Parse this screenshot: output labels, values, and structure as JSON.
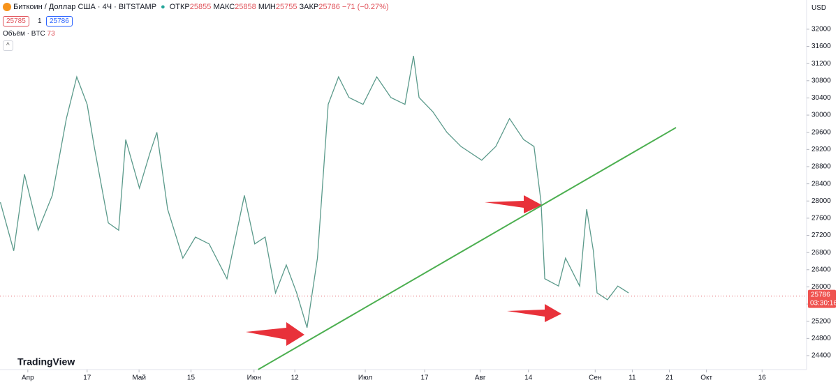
{
  "header": {
    "symbol": "Биткоин / Доллар США · 4Ч · BITSTAMP",
    "open_label": "ОТКР",
    "open": 25855,
    "high_label": "МАКС",
    "high": 25858,
    "low_label": "МИН",
    "low": 25755,
    "close_label": "ЗАКР",
    "close": 25786,
    "change": "−71 (−0.27%)",
    "bid": 25785,
    "spread": 1,
    "ask": 25786,
    "volume_label": "Объём · BTC",
    "volume": 73,
    "currency": "USD",
    "brand": "TradingView"
  },
  "chart_data": {
    "type": "line",
    "color": "#5b9a8b",
    "x": [
      -7.4,
      -3.8,
      -0.9,
      2.8,
      6.6,
      10.4,
      13.2,
      16.0,
      17.9,
      21.7,
      24.5,
      26.4,
      30.1,
      32.9,
      34.8,
      37.7,
      41.8,
      45.2,
      48.9,
      53.7,
      58.4,
      61.2,
      64.0,
      66.8,
      69.7,
      72.5,
      75.3,
      78.1,
      81.0,
      83.8,
      86.6,
      90.4,
      94.1,
      97.9,
      101.7,
      104.0,
      105.5,
      109.2,
      113.0,
      116.8,
      122.4,
      126.2,
      129.9,
      133.7,
      136.5,
      138.4,
      139.4,
      143.1,
      145.0,
      148.8,
      150.7,
      152.5,
      153.5,
      156.3,
      159.1,
      162.0
    ],
    "values": [
      27970,
      26840,
      28620,
      27320,
      28130,
      29920,
      30890,
      30250,
      29270,
      27490,
      27320,
      29430,
      28300,
      29110,
      29600,
      27810,
      26670,
      27160,
      27000,
      26190,
      28130,
      27000,
      27160,
      25860,
      26510,
      25860,
      25050,
      26670,
      30250,
      30890,
      30410,
      30250,
      30890,
      30410,
      30250,
      31380,
      30410,
      30080,
      29600,
      29270,
      28950,
      29270,
      29920,
      29430,
      29270,
      27970,
      26190,
      26020,
      26670,
      26020,
      27810,
      26840,
      25860,
      25700,
      26020,
      25860
    ],
    "trendline": {
      "x": [
        62.1,
        174.8
      ],
      "values": [
        24075,
        29710
      ],
      "color": "#4caf50"
    },
    "last_price": 25786,
    "countdown": "03:30:16",
    "xlim": [
      -7.5,
      210
    ],
    "ylim": [
      24075,
      32680
    ],
    "yticks": [
      24400,
      24800,
      25200,
      25600,
      26000,
      26400,
      26800,
      27200,
      27600,
      28000,
      28400,
      28800,
      29200,
      29600,
      30000,
      30400,
      30800,
      31200,
      31600,
      32000
    ],
    "xticks": [
      {
        "value": 0,
        "label": "Апр"
      },
      {
        "value": 16,
        "label": "17"
      },
      {
        "value": 30,
        "label": "Май"
      },
      {
        "value": 44,
        "label": "15"
      },
      {
        "value": 61,
        "label": "Июн"
      },
      {
        "value": 72,
        "label": "12"
      },
      {
        "value": 91,
        "label": "Июл"
      },
      {
        "value": 107,
        "label": "17"
      },
      {
        "value": 122,
        "label": "Авг"
      },
      {
        "value": 135,
        "label": "14"
      },
      {
        "value": 153,
        "label": "Сен"
      },
      {
        "value": 163,
        "label": "11"
      },
      {
        "value": 173,
        "label": "21"
      },
      {
        "value": 183,
        "label": "Окт"
      },
      {
        "value": 198,
        "label": "16"
      }
    ]
  }
}
